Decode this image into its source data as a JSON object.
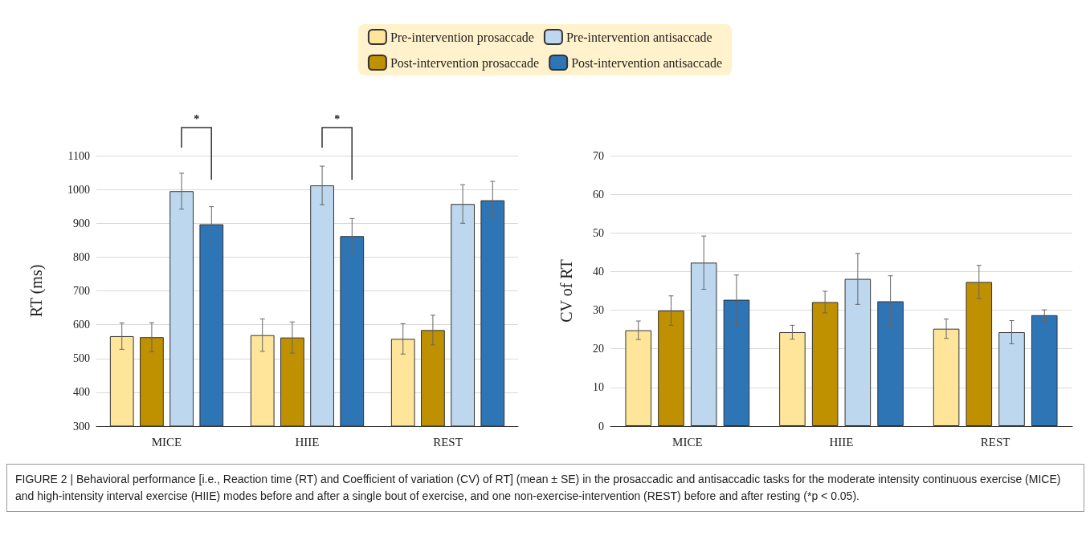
{
  "chart_data": [
    {
      "type": "bar",
      "ylabel": "RT (ms)",
      "categories": [
        "MICE",
        "HIIE",
        "REST"
      ],
      "ylim": [
        300,
        1100
      ],
      "yticks": [
        300,
        400,
        500,
        600,
        700,
        800,
        900,
        1000,
        1100
      ],
      "grid": "y",
      "legend": "top",
      "series": [
        {
          "name": "Pre-intervention prosaccade",
          "color": "#fee599",
          "values": [
            566,
            569,
            558
          ],
          "errors": [
            39,
            48,
            45
          ]
        },
        {
          "name": "Post-intervention prosaccade",
          "color": "#bf9000",
          "values": [
            563,
            562,
            584
          ],
          "errors": [
            43,
            46,
            44
          ]
        },
        {
          "name": "Pre-intervention antisaccade",
          "color": "#bdd7ee",
          "values": [
            995,
            1012,
            957
          ],
          "errors": [
            53,
            57,
            57
          ]
        },
        {
          "name": "Post-intervention antisaccade",
          "color": "#2e75b6",
          "values": [
            897,
            862,
            968
          ],
          "errors": [
            52,
            52,
            56
          ]
        }
      ],
      "annotations": [
        "*",
        "*",
        "FIGURE 2 | Behavioral performance [i.e., Reaction time (RT) and Coefficient of variation (CV) of RT] (mean ± SE) in the prosaccadic and antisaccadic tasks for the moderate intensity continuous exercise (MICE) and high-intensity interval exercise (HIIE) modes before and after a single bout of exercise, and one non-exercise-intervention (REST) before and after resting (*p < 0.05)."
      ]
    },
    {
      "type": "bar",
      "ylabel": "CV of RT",
      "categories": [
        "MICE",
        "HIIE",
        "REST"
      ],
      "ylim": [
        0,
        70
      ],
      "yticks": [
        0,
        10,
        20,
        30,
        40,
        50,
        60,
        70
      ],
      "grid": "y",
      "series": [
        {
          "color": "#fee599",
          "values": [
            24.8,
            24.3,
            25.2
          ],
          "errors": [
            2.4,
            1.8,
            2.5
          ]
        },
        {
          "color": "#bf9000",
          "values": [
            29.9,
            32.1,
            37.3
          ],
          "errors": [
            3.8,
            2.8,
            4.3
          ]
        },
        {
          "color": "#bdd7ee",
          "values": [
            42.3,
            38.1,
            24.3
          ],
          "errors": [
            6.9,
            6.6,
            3.0
          ]
        },
        {
          "color": "#2e75b6",
          "values": [
            32.7,
            32.3,
            28.7
          ],
          "errors": [
            6.4,
            6.6,
            1.4
          ]
        }
      ]
    }
  ]
}
